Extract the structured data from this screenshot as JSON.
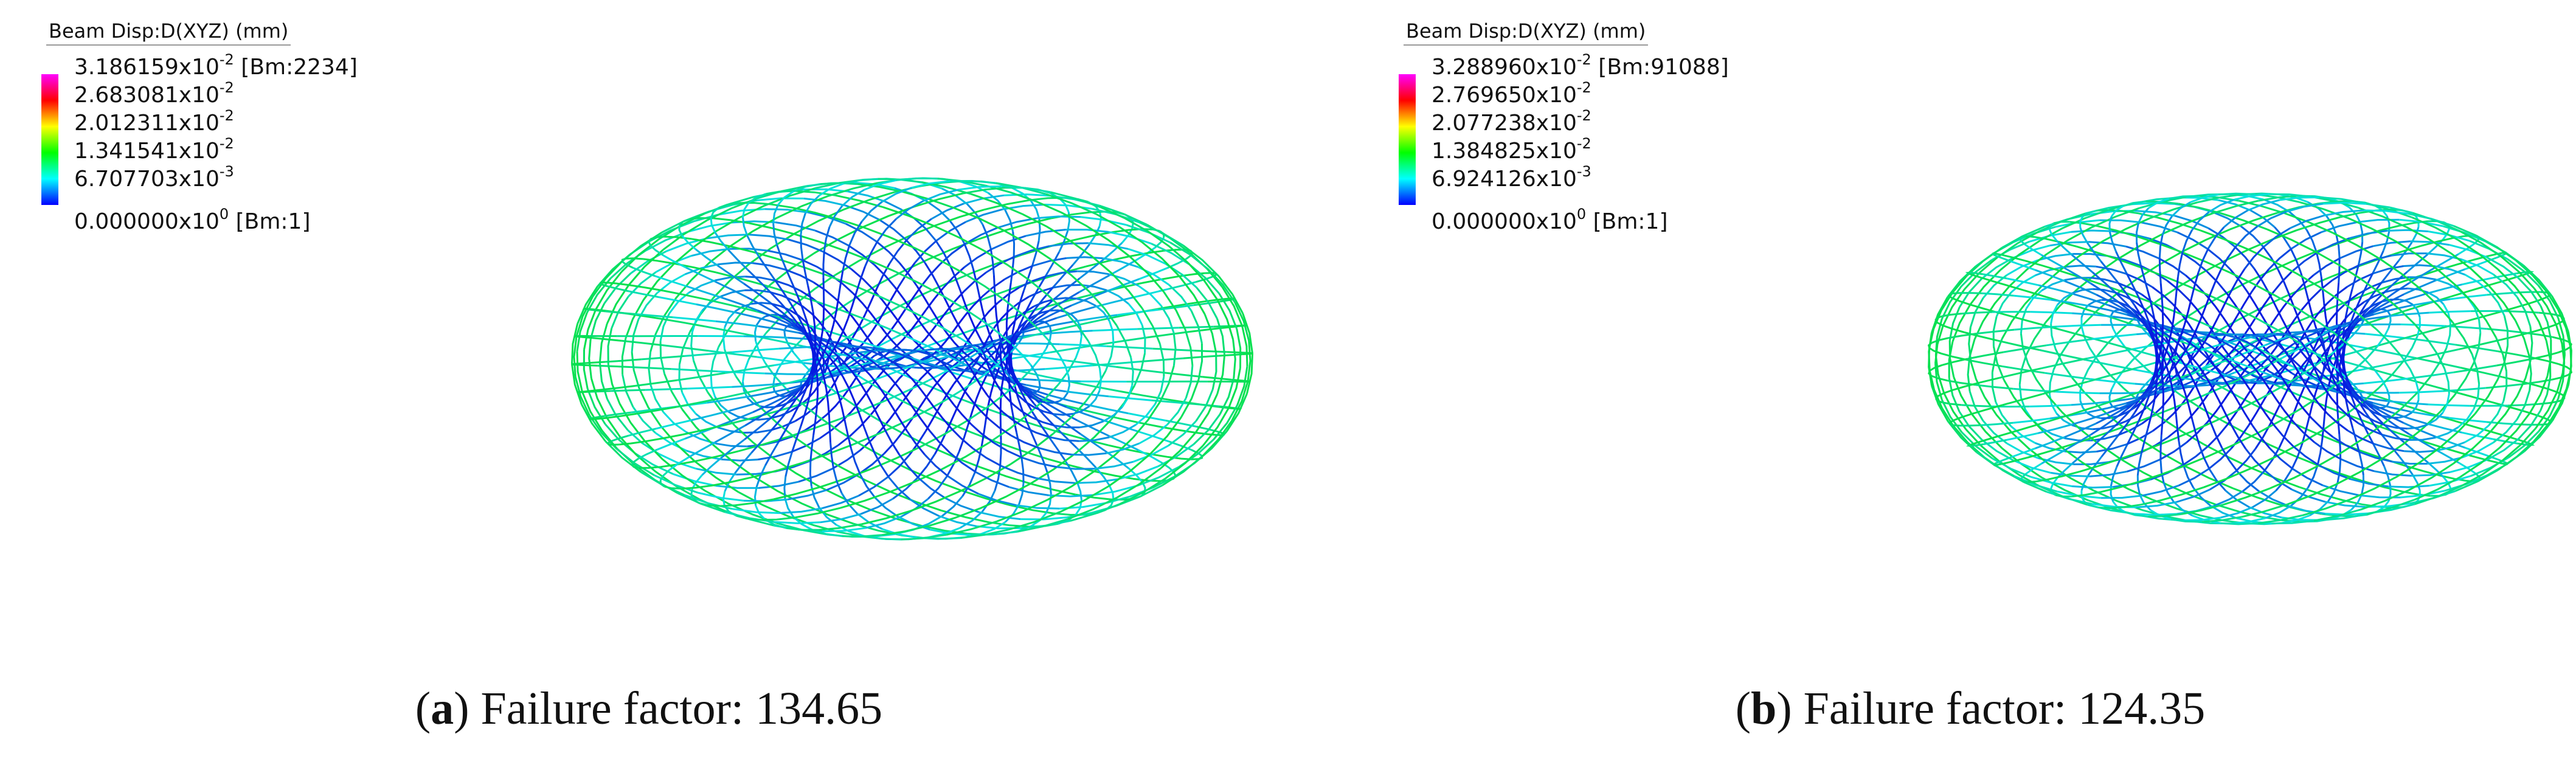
{
  "panels": [
    {
      "legend": {
        "title": "Beam Disp:D(XYZ)  (mm)",
        "entries": [
          {
            "mantissa": "3.186159x10",
            "exponent": "-2",
            "suffix": " [Bm:2234]"
          },
          {
            "mantissa": "2.683081x10",
            "exponent": "-2"
          },
          {
            "mantissa": "2.012311x10",
            "exponent": "-2"
          },
          {
            "mantissa": "1.341541x10",
            "exponent": "-2"
          },
          {
            "mantissa": "6.707703x10",
            "exponent": "-3"
          },
          {
            "mantissa": "0.000000x10",
            "exponent": "0",
            "suffix": " [Bm:1]"
          }
        ]
      },
      "caption": {
        "open": "(",
        "label": "a",
        "rest": ") Failure factor: 134.65"
      }
    },
    {
      "legend": {
        "title": "Beam Disp:D(XYZ)  (mm)",
        "entries": [
          {
            "mantissa": "3.288960x10",
            "exponent": "-2",
            "suffix": " [Bm:91088]"
          },
          {
            "mantissa": "2.769650x10",
            "exponent": "-2"
          },
          {
            "mantissa": "2.077238x10",
            "exponent": "-2"
          },
          {
            "mantissa": "1.384825x10",
            "exponent": "-2"
          },
          {
            "mantissa": "6.924126x10",
            "exponent": "-3"
          },
          {
            "mantissa": "0.000000x10",
            "exponent": "0",
            "suffix": " [Bm:1]"
          }
        ]
      },
      "caption": {
        "open": "(",
        "label": "b",
        "rest": ") Failure factor: 124.35"
      }
    }
  ]
}
